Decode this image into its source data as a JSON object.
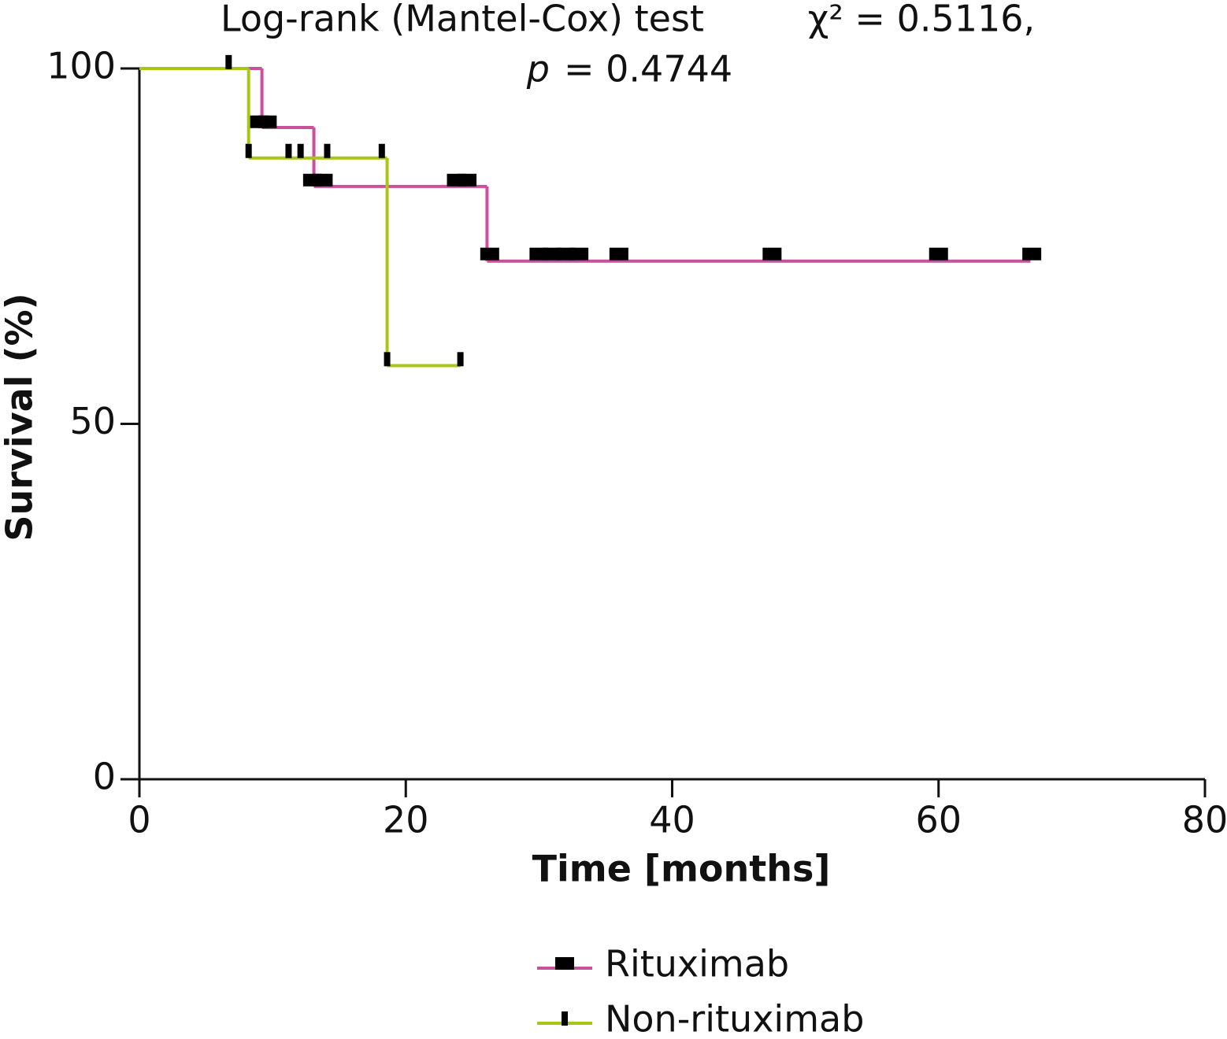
{
  "chart_data": {
    "type": "km",
    "annotations": [
      "Log-rank (Mantel-Cox) test",
      "χ² = 0.5116,",
      "p",
      "= 0.4744"
    ],
    "x_label": "Time [months]",
    "y_label": "Survival (%)",
    "xlim": [
      0,
      80
    ],
    "xticks": [
      0,
      20,
      40,
      60,
      80
    ],
    "ylim": [
      0,
      100
    ],
    "yticks": [
      0,
      50,
      100
    ],
    "legend": "bottom",
    "series": [
      {
        "name": "Rituximab",
        "color": "#c9509b",
        "marker": "square",
        "x": [
          0,
          9.2,
          13.1,
          26.1,
          66.9
        ],
        "values": [
          100,
          91.7,
          83.4,
          72.9,
          72.9
        ],
        "censored": {
          "x": [
            9,
            9.6,
            13,
            13.8,
            23.8,
            24.6,
            26.3,
            30,
            31,
            32,
            33,
            36,
            47.5,
            60,
            67
          ],
          "values": [
            92.5,
            92.5,
            84.3,
            84.3,
            84.3,
            84.3,
            73.9,
            73.9,
            73.9,
            73.9,
            73.9,
            73.9,
            73.9,
            73.9,
            73.9
          ]
        }
      },
      {
        "name": "Non-rituximab",
        "color": "#a8c614",
        "marker": "tick",
        "x": [
          0,
          8.2,
          18.6,
          24.1
        ],
        "values": [
          100,
          87.4,
          58.2,
          58.2
        ],
        "censored": {
          "x": [
            6.7,
            8.2,
            11.2,
            12.1,
            14.1,
            18.2,
            18.6,
            24.1
          ],
          "values": [
            100.9,
            88.4,
            88.4,
            88.4,
            88.4,
            88.4,
            59.1,
            59.1
          ]
        }
      }
    ]
  }
}
